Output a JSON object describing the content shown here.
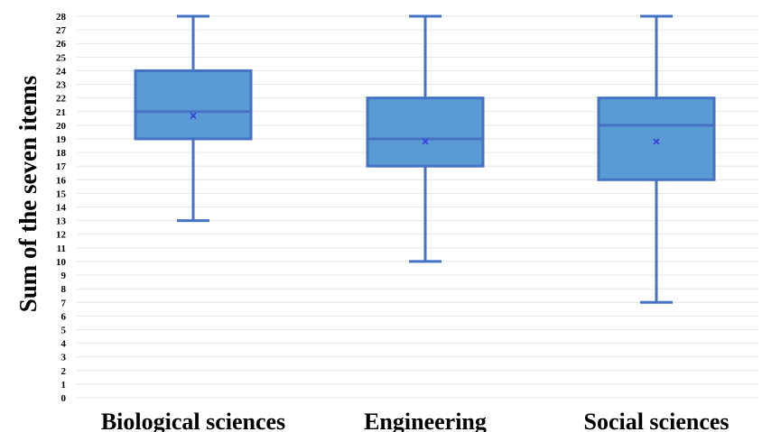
{
  "chart_data": {
    "type": "box",
    "title": "",
    "xlabel": "",
    "ylabel": "Sum of the seven items",
    "ylim": [
      0,
      28
    ],
    "yticks": [
      0,
      1,
      2,
      3,
      4,
      5,
      6,
      7,
      8,
      9,
      10,
      11,
      12,
      13,
      14,
      15,
      16,
      17,
      18,
      19,
      20,
      21,
      22,
      23,
      24,
      25,
      26,
      27,
      28
    ],
    "grid": true,
    "legend": "none",
    "categories": [
      "Biological sciences",
      "Engineering",
      "Social sciences"
    ],
    "boxes": [
      {
        "category": "Biological sciences",
        "min": 13,
        "q1": 19,
        "median": 21,
        "q3": 24,
        "max": 28,
        "mean": 20.7
      },
      {
        "category": "Engineering",
        "min": 10,
        "q1": 17,
        "median": 19,
        "q3": 22,
        "max": 28,
        "mean": 18.8
      },
      {
        "category": "Social sciences",
        "min": 7,
        "q1": 16,
        "median": 20,
        "q3": 22,
        "max": 28,
        "mean": 18.8
      }
    ],
    "colors": {
      "box_fill": "#5b9bd5",
      "box_stroke": "#4472c4",
      "mean_marker": "#3a3ad8",
      "grid": "#e4e4e4"
    }
  }
}
